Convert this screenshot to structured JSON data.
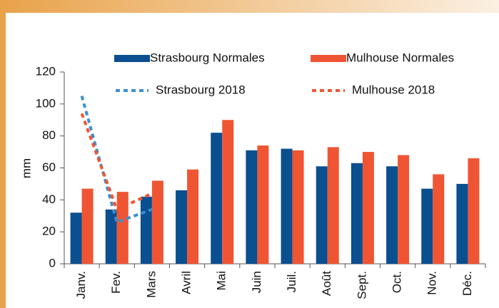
{
  "chart_data": {
    "type": "bar",
    "categories": [
      "Janv.",
      "Fev.",
      "Mars",
      "Avril",
      "Mai",
      "Juin",
      "Juil.",
      "Août",
      "Sept.",
      "Oct.",
      "Nov.",
      "Déc."
    ],
    "y_label": "mm",
    "ylim": [
      0,
      120
    ],
    "yticks": [
      0,
      20,
      40,
      60,
      80,
      100,
      120
    ],
    "series": [
      {
        "name": "Strasbourg Normales",
        "type": "bar",
        "color": "#0a4f8f",
        "values": [
          32,
          34,
          42,
          46,
          82,
          71,
          72,
          61,
          63,
          61,
          47,
          50
        ]
      },
      {
        "name": "Mulhouse Normales",
        "type": "bar",
        "color": "#ef5533",
        "values": [
          47,
          45,
          52,
          59,
          90,
          74,
          71,
          73,
          70,
          68,
          56,
          66
        ]
      },
      {
        "name": "Strasbourg 2018",
        "type": "line",
        "color": "#3a8fd0",
        "values": [
          105,
          26,
          34,
          null,
          null,
          null,
          null,
          null,
          null,
          null,
          null,
          null
        ]
      },
      {
        "name": "Mulhouse 2018",
        "type": "line",
        "color": "#ef5533",
        "values": [
          94,
          34,
          44,
          null,
          null,
          null,
          null,
          null,
          null,
          null,
          null,
          null
        ]
      }
    ]
  }
}
